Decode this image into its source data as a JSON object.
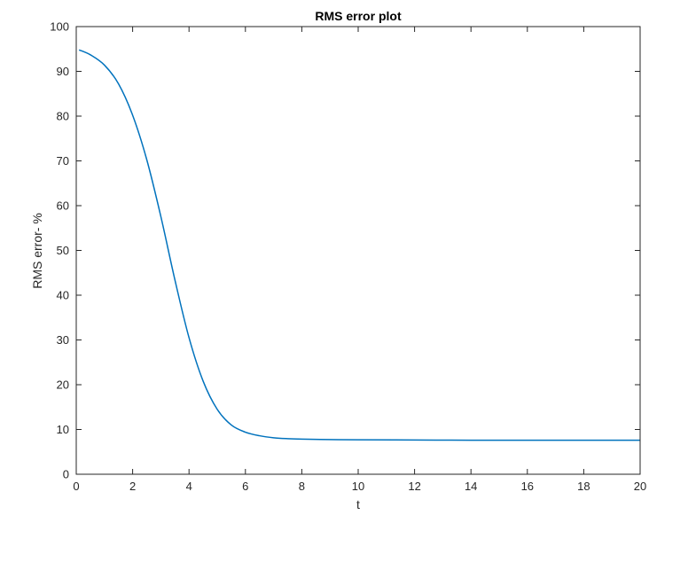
{
  "chart_data": {
    "type": "line",
    "title": "RMS error plot",
    "xlabel": "t",
    "ylabel": "RMS error- %",
    "xlim": [
      0,
      20
    ],
    "ylim": [
      0,
      100
    ],
    "xticks": [
      0,
      2,
      4,
      6,
      8,
      10,
      12,
      14,
      16,
      18,
      20
    ],
    "yticks": [
      0,
      10,
      20,
      30,
      40,
      50,
      60,
      70,
      80,
      90,
      100
    ],
    "grid": false,
    "series": [
      {
        "color": "#0072BD",
        "x": [
          0.1,
          0.5,
          1.0,
          1.5,
          2.0,
          2.5,
          3.0,
          3.5,
          4.0,
          4.5,
          5.0,
          5.5,
          6.0,
          6.5,
          7.0,
          7.5,
          8.0,
          9.0,
          10.0,
          12.0,
          14.0,
          16.0,
          18.0,
          20.0
        ],
        "y": [
          94.8,
          93.7,
          91.4,
          87.2,
          80.2,
          70.3,
          57.6,
          43.4,
          30.5,
          20.8,
          14.5,
          11.0,
          9.4,
          8.6,
          8.15,
          7.95,
          7.85,
          7.75,
          7.7,
          7.65,
          7.6,
          7.6,
          7.6,
          7.6
        ]
      }
    ]
  }
}
